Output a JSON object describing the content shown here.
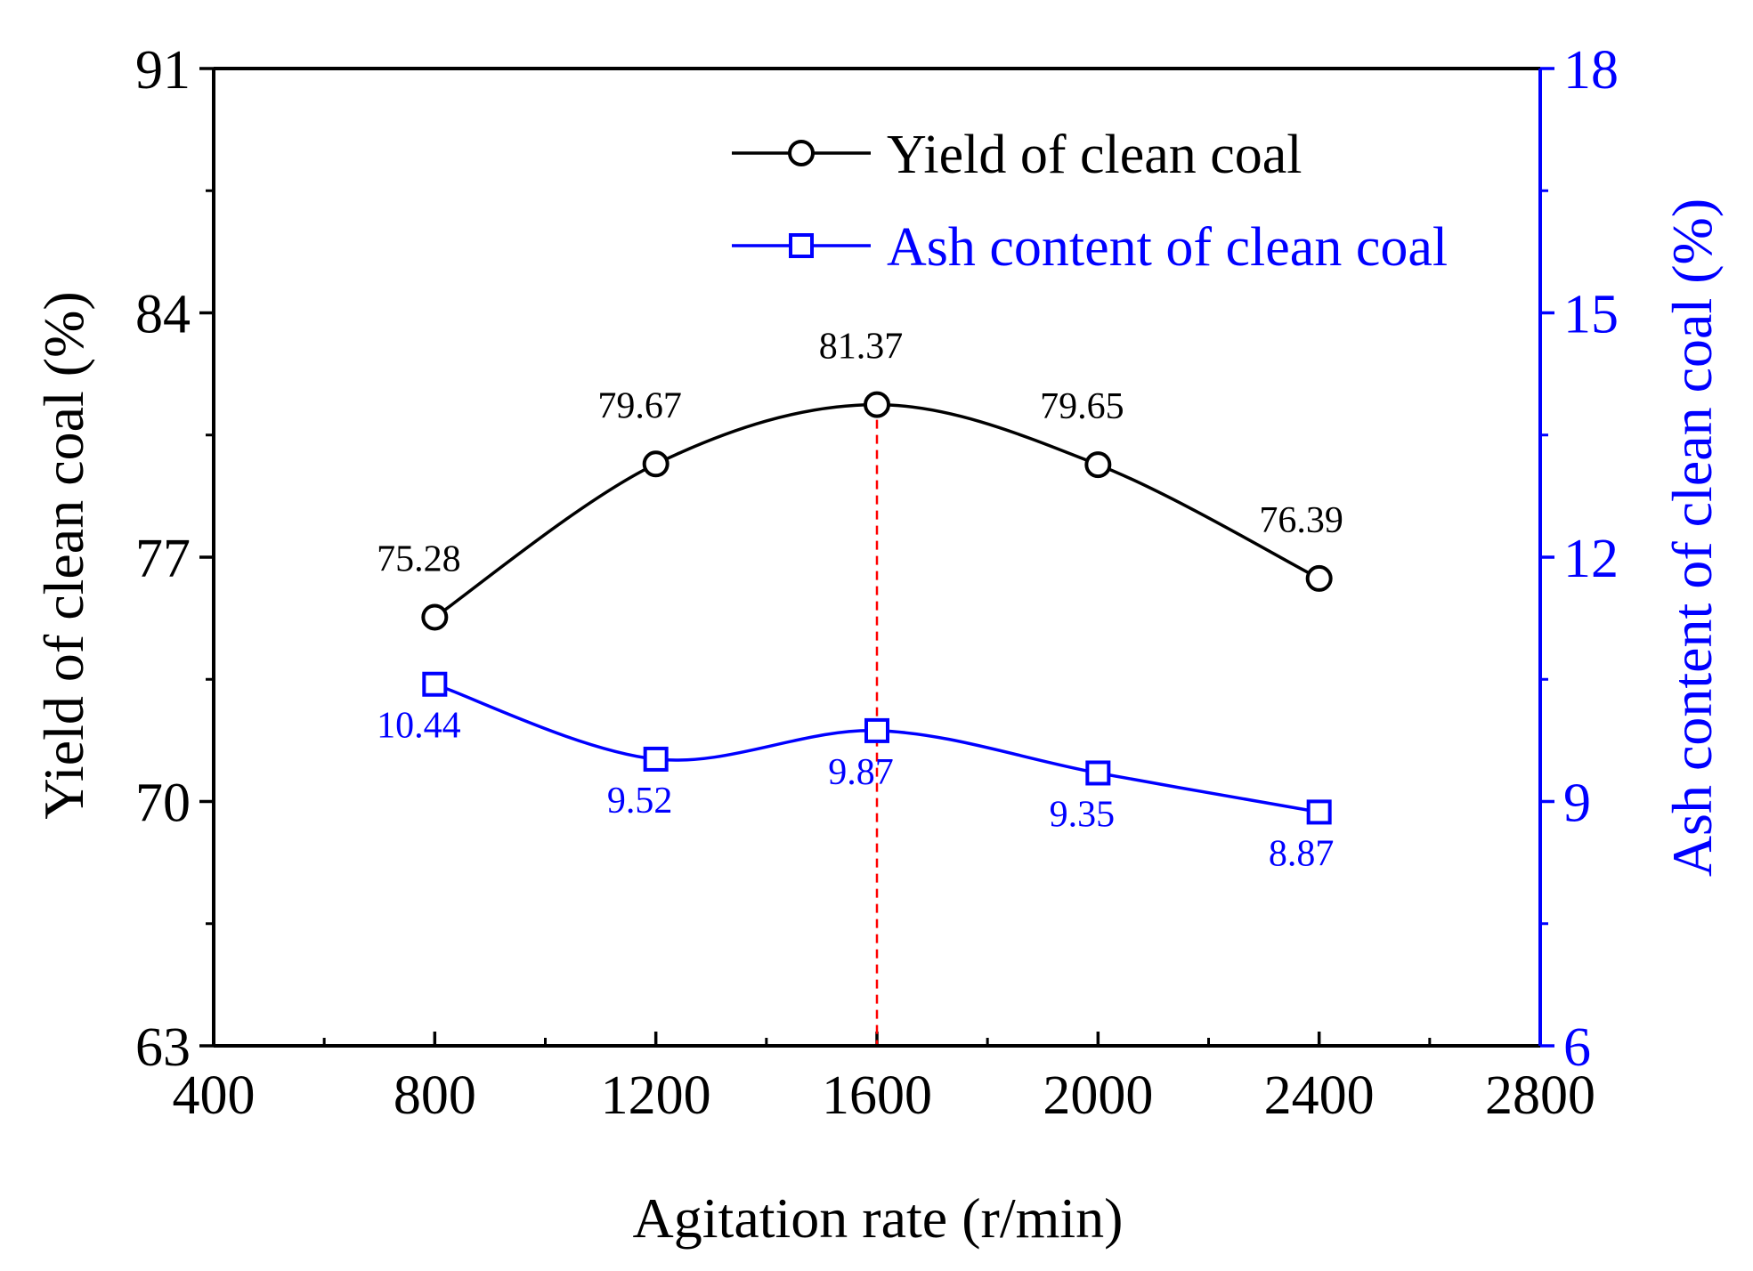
{
  "chart_data": {
    "type": "line",
    "xlabel": "Agitation rate (r/min)",
    "ylabel_left": "Yield of clean coal (%)",
    "ylabel_right": "Ash content of clean coal (%)",
    "x_range": [
      400,
      2800
    ],
    "x_ticks": [
      400,
      800,
      1200,
      1600,
      2000,
      2400,
      2800
    ],
    "x_tick_labels": [
      "400",
      "800",
      "1200",
      "1600",
      "2000",
      "2400",
      "2800"
    ],
    "y_left_range": [
      63,
      91
    ],
    "y_left_ticks": [
      63,
      70,
      77,
      84,
      91
    ],
    "y_left_tick_labels": [
      "63",
      "70",
      "77",
      "84",
      "91"
    ],
    "y_right_range": [
      6,
      18
    ],
    "y_right_ticks": [
      6,
      9,
      12,
      15,
      18
    ],
    "y_right_tick_labels": [
      "6",
      "9",
      "12",
      "15",
      "18"
    ],
    "legend_position": "top-right",
    "reference_line_x": 1600,
    "series": [
      {
        "name": "Yield of clean coal",
        "axis": "left",
        "marker": "circle",
        "color": "#000000",
        "x": [
          800,
          1200,
          1600,
          2000,
          2400
        ],
        "values": [
          75.28,
          79.67,
          81.37,
          79.65,
          76.39
        ],
        "labels": [
          "75.28",
          "79.67",
          "81.37",
          "79.65",
          "76.39"
        ]
      },
      {
        "name": "Ash content of clean coal",
        "axis": "right",
        "marker": "square",
        "color": "#0000ff",
        "x": [
          800,
          1200,
          1600,
          2000,
          2400
        ],
        "values": [
          10.44,
          9.52,
          9.87,
          9.35,
          8.87
        ],
        "labels": [
          "10.44",
          "9.52",
          "9.87",
          "9.35",
          "8.87"
        ]
      }
    ],
    "colors": {
      "axis": "#000000",
      "right_axis": "#0000ff",
      "reference_line": "#ff0000"
    }
  }
}
